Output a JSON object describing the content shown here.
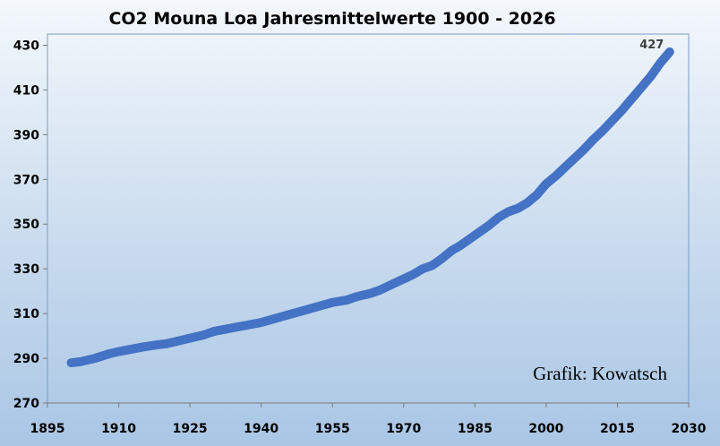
{
  "chart_data": {
    "type": "line",
    "title": "CO2 Mouna Loa Jahresmittelwerte 1900 - 2026",
    "xlabel": "",
    "ylabel": "",
    "xlim": [
      1895,
      2030
    ],
    "ylim": [
      270,
      435
    ],
    "xticks": [
      1895,
      1910,
      1925,
      1940,
      1955,
      1970,
      1985,
      2000,
      2015,
      2030
    ],
    "yticks": [
      270,
      290,
      310,
      330,
      350,
      370,
      390,
      410,
      430
    ],
    "grid": false,
    "legend": "none",
    "line_color": "#4472c4",
    "annotation": "Grafik: Kowatsch",
    "end_label": "427",
    "series": [
      {
        "x": [
          1900,
          1902,
          1905,
          1908,
          1910,
          1915,
          1918,
          1920,
          1925,
          1928,
          1930,
          1935,
          1940,
          1945,
          1950,
          1955,
          1958,
          1960,
          1963,
          1965,
          1968,
          1970,
          1972,
          1974,
          1976,
          1978,
          1980,
          1982,
          1984,
          1986,
          1988,
          1990,
          1992,
          1994,
          1996,
          1998,
          2000,
          2002,
          2004,
          2006,
          2008,
          2010,
          2012,
          2014,
          2016,
          2018,
          2020,
          2022,
          2024,
          2026
        ],
        "values": [
          288,
          288.5,
          290,
          292,
          293,
          295,
          296,
          296.5,
          299,
          300.5,
          302,
          304,
          306,
          309,
          312,
          315,
          316,
          317.5,
          319,
          320.5,
          323.5,
          325.5,
          327.5,
          330,
          331.5,
          334.5,
          338,
          340.5,
          343.5,
          346.5,
          349.5,
          353,
          355.5,
          357,
          359.5,
          363,
          368,
          371.5,
          375.5,
          379.5,
          383.5,
          388,
          392,
          396.5,
          401,
          406,
          411,
          416,
          422,
          427
        ]
      }
    ]
  }
}
